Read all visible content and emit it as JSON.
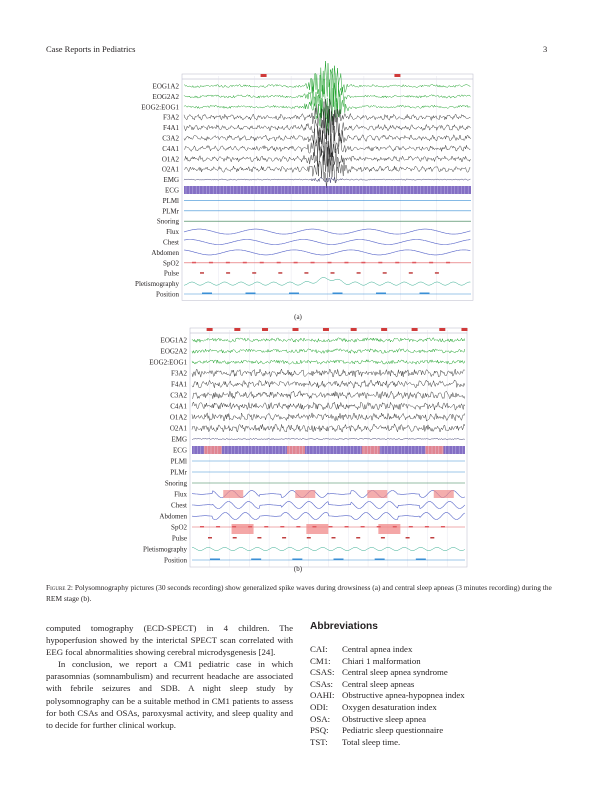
{
  "header": {
    "journal": "Case Reports in Pediatrics",
    "page": "3"
  },
  "figure": {
    "panels": [
      {
        "label": "(a)",
        "channels": [
          "EOG1A2",
          "EOG2A2",
          "EOG2:EOG1",
          "F3A2",
          "F4A1",
          "C3A2",
          "C4A1",
          "O1A2",
          "O2A1",
          "EMG",
          "ECG",
          "PLMl",
          "PLMr",
          "Snoring",
          "Flux",
          "Chest",
          "Abdomen",
          "SpO2",
          "Pulse",
          "Pletismography",
          "Position"
        ]
      },
      {
        "label": "(b)",
        "channels": [
          "EOG1A2",
          "EOG2A2",
          "EOG2:EOG1",
          "F3A2",
          "F4A1",
          "C3A2",
          "C4A1",
          "O1A2",
          "O2A1",
          "EMG",
          "ECG",
          "PLMl",
          "PLMr",
          "Snoring",
          "Flux",
          "Chest",
          "Abdomen",
          "SpO2",
          "Pulse",
          "Pletismography",
          "Position"
        ]
      }
    ],
    "colors": {
      "eog": "#1fa22c",
      "eeg": "#111111",
      "ecg": "#5b3fb0",
      "resp": "#5563c8",
      "spo2": "#e0585e",
      "pleth": "#2aa88a",
      "position": "#3a8fd6"
    },
    "caption_label": "Figure 2:",
    "caption_text": " Polysomnography pictures (30 seconds recording) show generalized spike waves during drowsiness (a) and central sleep apneas (3 minutes recording) during the REM stage (b)."
  },
  "body": {
    "p1": "computed tomography (ECD-SPECT) in 4 children. The hypoperfusion showed by the interictal SPECT scan correlated with EEG focal abnormalities showing cerebral microdysgenesis [24].",
    "p2": "In conclusion, we report a CM1 pediatric case in which parasomnias (somnambulism) and recurrent headache are associated with febrile seizures and SDB. A night sleep study by polysomnography can be a suitable method in CM1 patients to assess for both CSAs and OSAs, paroxysmal activity, and sleep quality and to decide for further clinical workup."
  },
  "abbreviations": {
    "title": "Abbreviations",
    "items": [
      {
        "abbr": "CAI:",
        "def": "Central apnea index"
      },
      {
        "abbr": "CM1:",
        "def": "Chiari 1 malformation"
      },
      {
        "abbr": "CSAS:",
        "def": "Central sleep apnea syndrome"
      },
      {
        "abbr": "CSAs:",
        "def": "Central sleep apneas"
      },
      {
        "abbr": "OAHI:",
        "def": "Obstructive apnea-hypopnea index"
      },
      {
        "abbr": "ODI:",
        "def": "Oxygen desaturation index"
      },
      {
        "abbr": "OSA:",
        "def": "Obstructive sleep apnea"
      },
      {
        "abbr": "PSQ:",
        "def": "Pediatric sleep questionnaire"
      },
      {
        "abbr": "TST:",
        "def": "Total sleep time."
      }
    ]
  }
}
